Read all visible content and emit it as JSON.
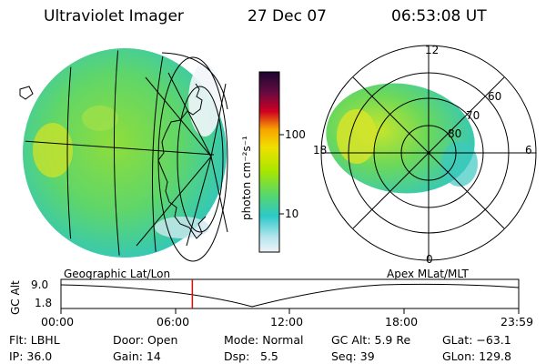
{
  "header": {
    "title": "Ultraviolet Imager",
    "date": "27 Dec 07",
    "time": "06:53:08 UT"
  },
  "colorbar": {
    "label": "photon cm⁻²s⁻¹",
    "ticks": [
      "100",
      "10"
    ],
    "colors": [
      "#2a0a3e",
      "#d10020",
      "#f7a400",
      "#f0e000",
      "#a8e600",
      "#58d86a",
      "#2cc8c8",
      "#dfe7f2"
    ]
  },
  "polar": {
    "mlt_labels": [
      "12",
      "18",
      "6",
      "0"
    ],
    "lat_labels": [
      "60",
      "70",
      "80"
    ]
  },
  "timeline": {
    "left_label": "Geographic Lat/Lon",
    "right_label": "Apex MLat/MLT",
    "axis_title": "GC Alt",
    "y_ticks": [
      "9.0",
      "1.8"
    ],
    "x_ticks": [
      "00:00",
      "06:00",
      "12:00",
      "18:00",
      "23:59"
    ],
    "current_time_fraction": 0.287
  },
  "info": {
    "row1": [
      "Flt: LBHL",
      "Door: Open",
      "Mode: Normal",
      "GC Alt: 5.9 Re",
      "GLat: −63.1"
    ],
    "row2": [
      "IP: 36.0",
      "Gain: 14",
      "Dsp:",
      "5.5",
      "Seq: 39",
      "GLon: 129.8"
    ]
  }
}
